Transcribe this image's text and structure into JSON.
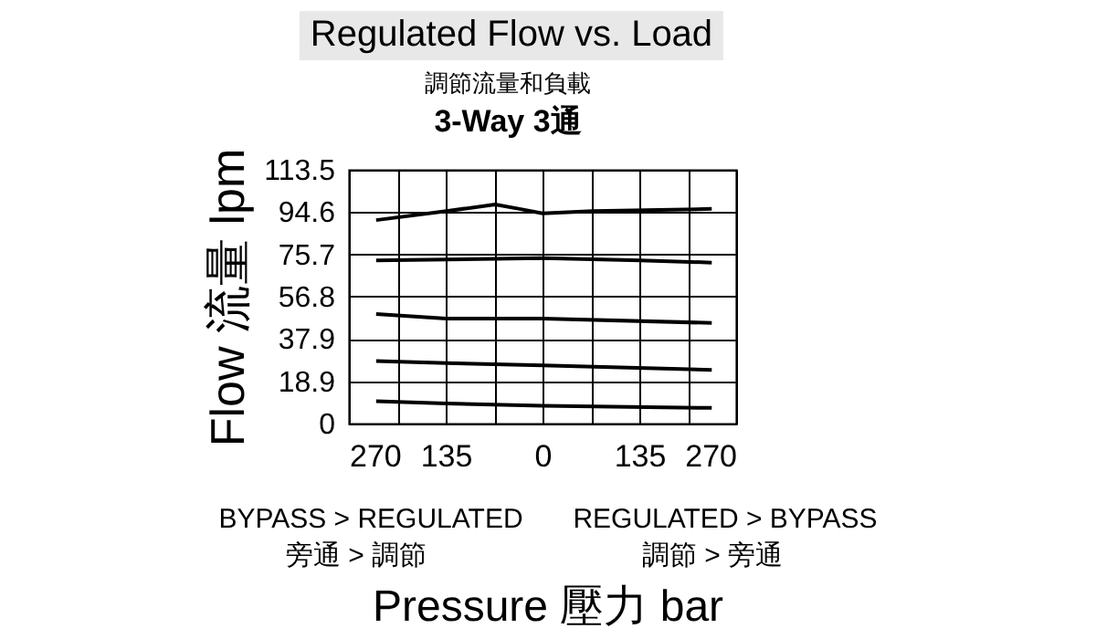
{
  "chart_data": {
    "type": "line",
    "title": "Regulated Flow  vs. Load",
    "subtitle": "調節流量和負載",
    "xlabel": "Pressure 壓力 bar",
    "ylabel": "Flow 流量 lpm",
    "annotations": [
      "3-Way  3通",
      "BYPASS > REGULATED",
      "旁通 > 調節",
      "REGULATED > BYPASS",
      "調節 > 旁通"
    ],
    "xlim": [
      -270,
      270
    ],
    "xticks": [
      {
        "value": -270,
        "label": "270"
      },
      {
        "value": -202.5,
        "label": null
      },
      {
        "value": -135,
        "label": "135"
      },
      {
        "value": -67.5,
        "label": null
      },
      0,
      {
        "value": 67.5,
        "label": null
      },
      {
        "value": 135,
        "label": "135"
      },
      {
        "value": 202.5,
        "label": null
      },
      {
        "value": 270,
        "label": "270"
      }
    ],
    "ylim": [
      0,
      113.5
    ],
    "yticks": [
      0,
      18.9,
      37.9,
      56.8,
      75.7,
      94.6,
      113.5
    ],
    "grid": true,
    "series": [
      {
        "color": "#000000",
        "x": [
          -232,
          -134,
          -66,
          -32,
          0,
          70,
          236
        ],
        "values": [
          91,
          95,
          98,
          96,
          94,
          95,
          96
        ]
      },
      {
        "color": "#000000",
        "x": [
          -232,
          0,
          136,
          236
        ],
        "values": [
          73,
          74,
          73,
          72
        ]
      },
      {
        "color": "#000000",
        "x": [
          -232,
          -134,
          0,
          236
        ],
        "values": [
          49,
          47,
          47,
          45
        ]
      },
      {
        "color": "#000000",
        "x": [
          -232,
          -134,
          0,
          236
        ],
        "values": [
          28,
          27,
          26,
          24
        ]
      },
      {
        "color": "#000000",
        "x": [
          -232,
          -134,
          0,
          236
        ],
        "values": [
          10,
          9,
          8,
          7
        ]
      }
    ]
  }
}
